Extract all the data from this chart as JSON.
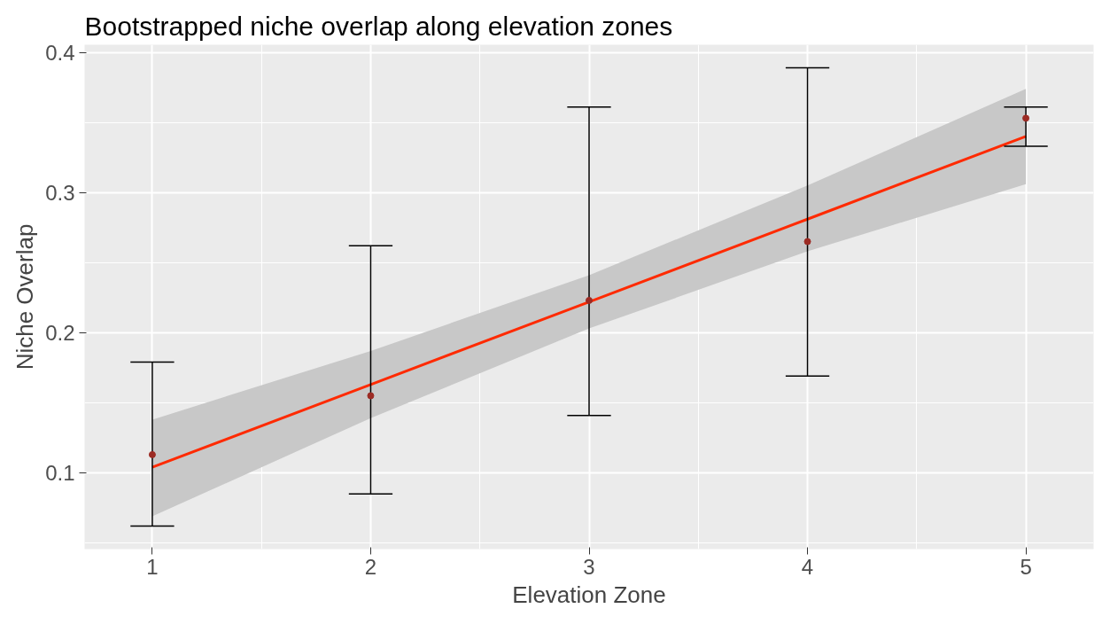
{
  "chart_data": {
    "type": "scatter",
    "title": "Bootstrapped niche overlap along elevation zones",
    "xlabel": "Elevation Zone",
    "ylabel": "Niche Overlap",
    "x": [
      1,
      2,
      3,
      4,
      5
    ],
    "series": [
      {
        "color": "#9c2b24",
        "marker": "circle",
        "values": [
          0.113,
          0.155,
          0.223,
          0.265,
          0.353
        ],
        "errors": [
          [
            0.062,
            0.179
          ],
          [
            0.085,
            0.262
          ],
          [
            0.141,
            0.361
          ],
          [
            0.169,
            0.389
          ],
          [
            0.333,
            0.361
          ]
        ]
      },
      {
        "type": "line",
        "color": "#ff2a00",
        "x": [
          1,
          2,
          3,
          4,
          5
        ],
        "values": [
          0.104,
          0.163,
          0.222,
          0.281,
          0.34
        ],
        "lower": [
          0.069,
          0.139,
          0.203,
          0.258,
          0.306
        ],
        "upper": [
          0.138,
          0.187,
          0.241,
          0.305,
          0.374
        ]
      }
    ],
    "xlim": [
      0.69,
      5.31
    ],
    "ylim": [
      0.0456,
      0.4054
    ],
    "xticks": [
      1,
      2,
      3,
      4,
      5
    ],
    "yticks": [
      0.1,
      0.2,
      0.3,
      0.4
    ],
    "grid": true,
    "line_style": "solid"
  }
}
